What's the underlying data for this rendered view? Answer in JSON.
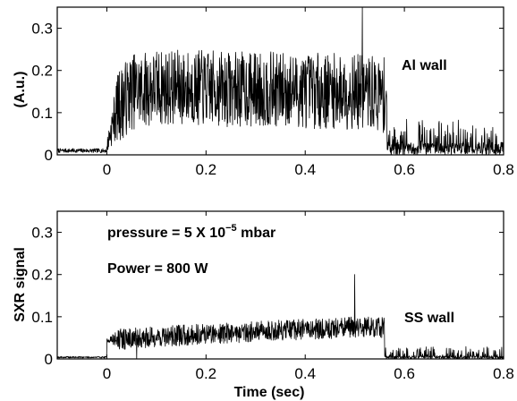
{
  "chart_data": [
    {
      "type": "line",
      "xlim": [
        -0.1,
        0.8
      ],
      "ylim": [
        0,
        0.35
      ],
      "xticks": [
        "0",
        "0.2",
        "0.4",
        "0.6",
        "0.8"
      ],
      "yticks": [
        "0",
        "0.1",
        "0.2",
        "0.3"
      ],
      "ylabel": "(A.u.)",
      "xlabel": "",
      "grid": false,
      "annotations": [
        "Al wall"
      ],
      "signal": {
        "pre_level": 0.005,
        "rise_t": 0.0,
        "plateau": [
          [
            0.0,
            0.02
          ],
          [
            0.02,
            0.11
          ],
          [
            0.05,
            0.15
          ],
          [
            0.1,
            0.16
          ],
          [
            0.3,
            0.155
          ],
          [
            0.5,
            0.15
          ],
          [
            0.565,
            0.14
          ]
        ],
        "fall_t": 0.565,
        "post_level": 0.02,
        "noise_amplitude": 0.09,
        "spikes": [
          [
            0.515,
            0.35
          ]
        ]
      }
    },
    {
      "type": "line",
      "xlim": [
        -0.1,
        0.8
      ],
      "ylim": [
        0,
        0.35
      ],
      "xticks": [
        "0",
        "0.2",
        "0.4",
        "0.6",
        "0.8"
      ],
      "yticks": [
        "0",
        "0.1",
        "0.2",
        "0.3"
      ],
      "ylabel": "SXR signal",
      "xlabel": "Time (sec)",
      "grid": false,
      "annotations": [
        "pressure = 5 X 10",
        "−5",
        " mbar",
        "Power = 800 W",
        "SS wall"
      ],
      "signal": {
        "pre_level": 0.002,
        "rise_t": 0.0,
        "plateau": [
          [
            0.0,
            0.045
          ],
          [
            0.1,
            0.052
          ],
          [
            0.2,
            0.06
          ],
          [
            0.3,
            0.065
          ],
          [
            0.4,
            0.07
          ],
          [
            0.5,
            0.075
          ],
          [
            0.555,
            0.075
          ]
        ],
        "fall_t": 0.56,
        "post_level": 0.005,
        "noise_amplitude": 0.025,
        "spikes": [
          [
            0.5,
            0.2
          ],
          [
            0.06,
            0.0
          ]
        ]
      }
    }
  ]
}
